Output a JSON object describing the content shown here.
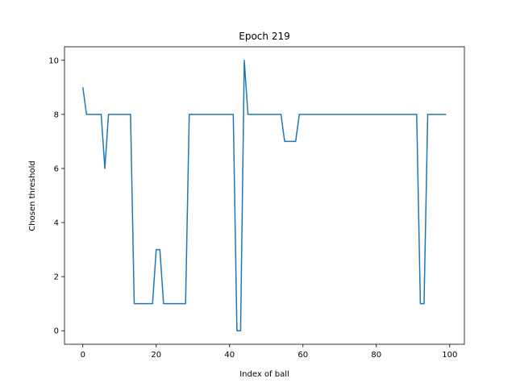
{
  "chart_data": {
    "type": "line",
    "title": "Epoch 219",
    "xlabel": "Index of ball",
    "ylabel": "Chosen threshold",
    "xlim": [
      -5,
      104
    ],
    "ylim": [
      -0.5,
      10.5
    ],
    "xticks": [
      0,
      20,
      40,
      60,
      80,
      100
    ],
    "yticks": [
      0,
      2,
      4,
      6,
      8,
      10
    ],
    "grid": false,
    "line_color": "#1f77b4",
    "series": [
      {
        "x": [
          0,
          1,
          2,
          3,
          4,
          5,
          6,
          7,
          8,
          9,
          10,
          11,
          12,
          13,
          14,
          15,
          16,
          17,
          18,
          19,
          20,
          21,
          22,
          23,
          24,
          25,
          26,
          27,
          28,
          29,
          30,
          31,
          32,
          33,
          34,
          35,
          36,
          37,
          38,
          39,
          40,
          41,
          42,
          43,
          44,
          45,
          46,
          47,
          48,
          49,
          50,
          51,
          52,
          53,
          54,
          55,
          56,
          57,
          58,
          59,
          60,
          61,
          62,
          63,
          64,
          65,
          66,
          67,
          68,
          69,
          70,
          71,
          72,
          73,
          74,
          75,
          76,
          77,
          78,
          79,
          80,
          81,
          82,
          83,
          84,
          85,
          86,
          87,
          88,
          89,
          90,
          91,
          92,
          93,
          94,
          95,
          96,
          97,
          98,
          99
        ],
        "y": [
          9,
          8,
          8,
          8,
          8,
          8,
          6,
          8,
          8,
          8,
          8,
          8,
          8,
          8,
          1,
          1,
          1,
          1,
          1,
          1,
          3,
          3,
          1,
          1,
          1,
          1,
          1,
          1,
          1,
          8,
          8,
          8,
          8,
          8,
          8,
          8,
          8,
          8,
          8,
          8,
          8,
          8,
          0,
          0,
          10,
          8,
          8,
          8,
          8,
          8,
          8,
          8,
          8,
          8,
          8,
          7,
          7,
          7,
          7,
          8,
          8,
          8,
          8,
          8,
          8,
          8,
          8,
          8,
          8,
          8,
          8,
          8,
          8,
          8,
          8,
          8,
          8,
          8,
          8,
          8,
          8,
          8,
          8,
          8,
          8,
          8,
          8,
          8,
          8,
          8,
          8,
          8,
          1,
          1,
          8,
          8,
          8,
          8,
          8,
          8
        ]
      }
    ]
  }
}
